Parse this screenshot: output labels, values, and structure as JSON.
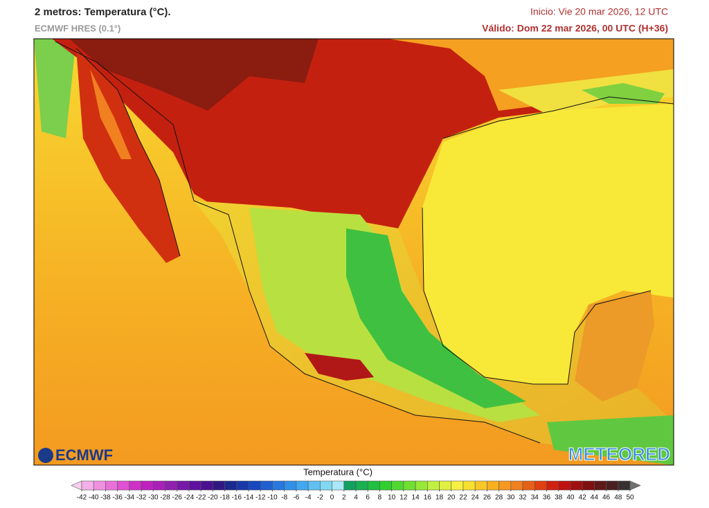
{
  "header": {
    "title": "2 metros: Temperatura (°C).",
    "model": "ECMWF HRES (0.1°)",
    "init": "Inicio: Vie 20 mar 2026, 12 UTC",
    "valid": "Válido: Dom 22 mar 2026, 00 UTC (H+36)"
  },
  "logos": {
    "left": "ECMWF",
    "right": "METEORED"
  },
  "colorbar": {
    "title": "Temperatura (°C)",
    "ticks": [
      -42,
      -40,
      -38,
      -36,
      -34,
      -32,
      -30,
      -28,
      -26,
      -24,
      -22,
      -20,
      -18,
      -16,
      -14,
      -12,
      -10,
      -8,
      -6,
      -4,
      -2,
      0,
      2,
      4,
      6,
      8,
      10,
      12,
      14,
      16,
      18,
      20,
      22,
      24,
      26,
      28,
      30,
      32,
      34,
      36,
      38,
      40,
      42,
      44,
      46,
      48,
      50
    ],
    "colors": [
      "#f9d0ef",
      "#f5b0e8",
      "#f090e0",
      "#ea70d8",
      "#e050d0",
      "#d030c8",
      "#c020c0",
      "#a820b8",
      "#9020b0",
      "#7818a8",
      "#6010a0",
      "#4a1090",
      "#301880",
      "#1a2890",
      "#1838a8",
      "#1848c0",
      "#2060d0",
      "#2878e0",
      "#3090e8",
      "#40a8f0",
      "#60c0f0",
      "#80d8f4",
      "#a8e8f8",
      "#10a060",
      "#18b050",
      "#20c040",
      "#30d030",
      "#50d830",
      "#70e030",
      "#98e838",
      "#c0f040",
      "#e0f040",
      "#f8f040",
      "#f8e030",
      "#f8c828",
      "#f8b020",
      "#f89820",
      "#f08020",
      "#e86018",
      "#e04010",
      "#d02010",
      "#c01010",
      "#a01010",
      "#801010",
      "#601818",
      "#4a2020",
      "#383030",
      "#707070"
    ]
  }
}
